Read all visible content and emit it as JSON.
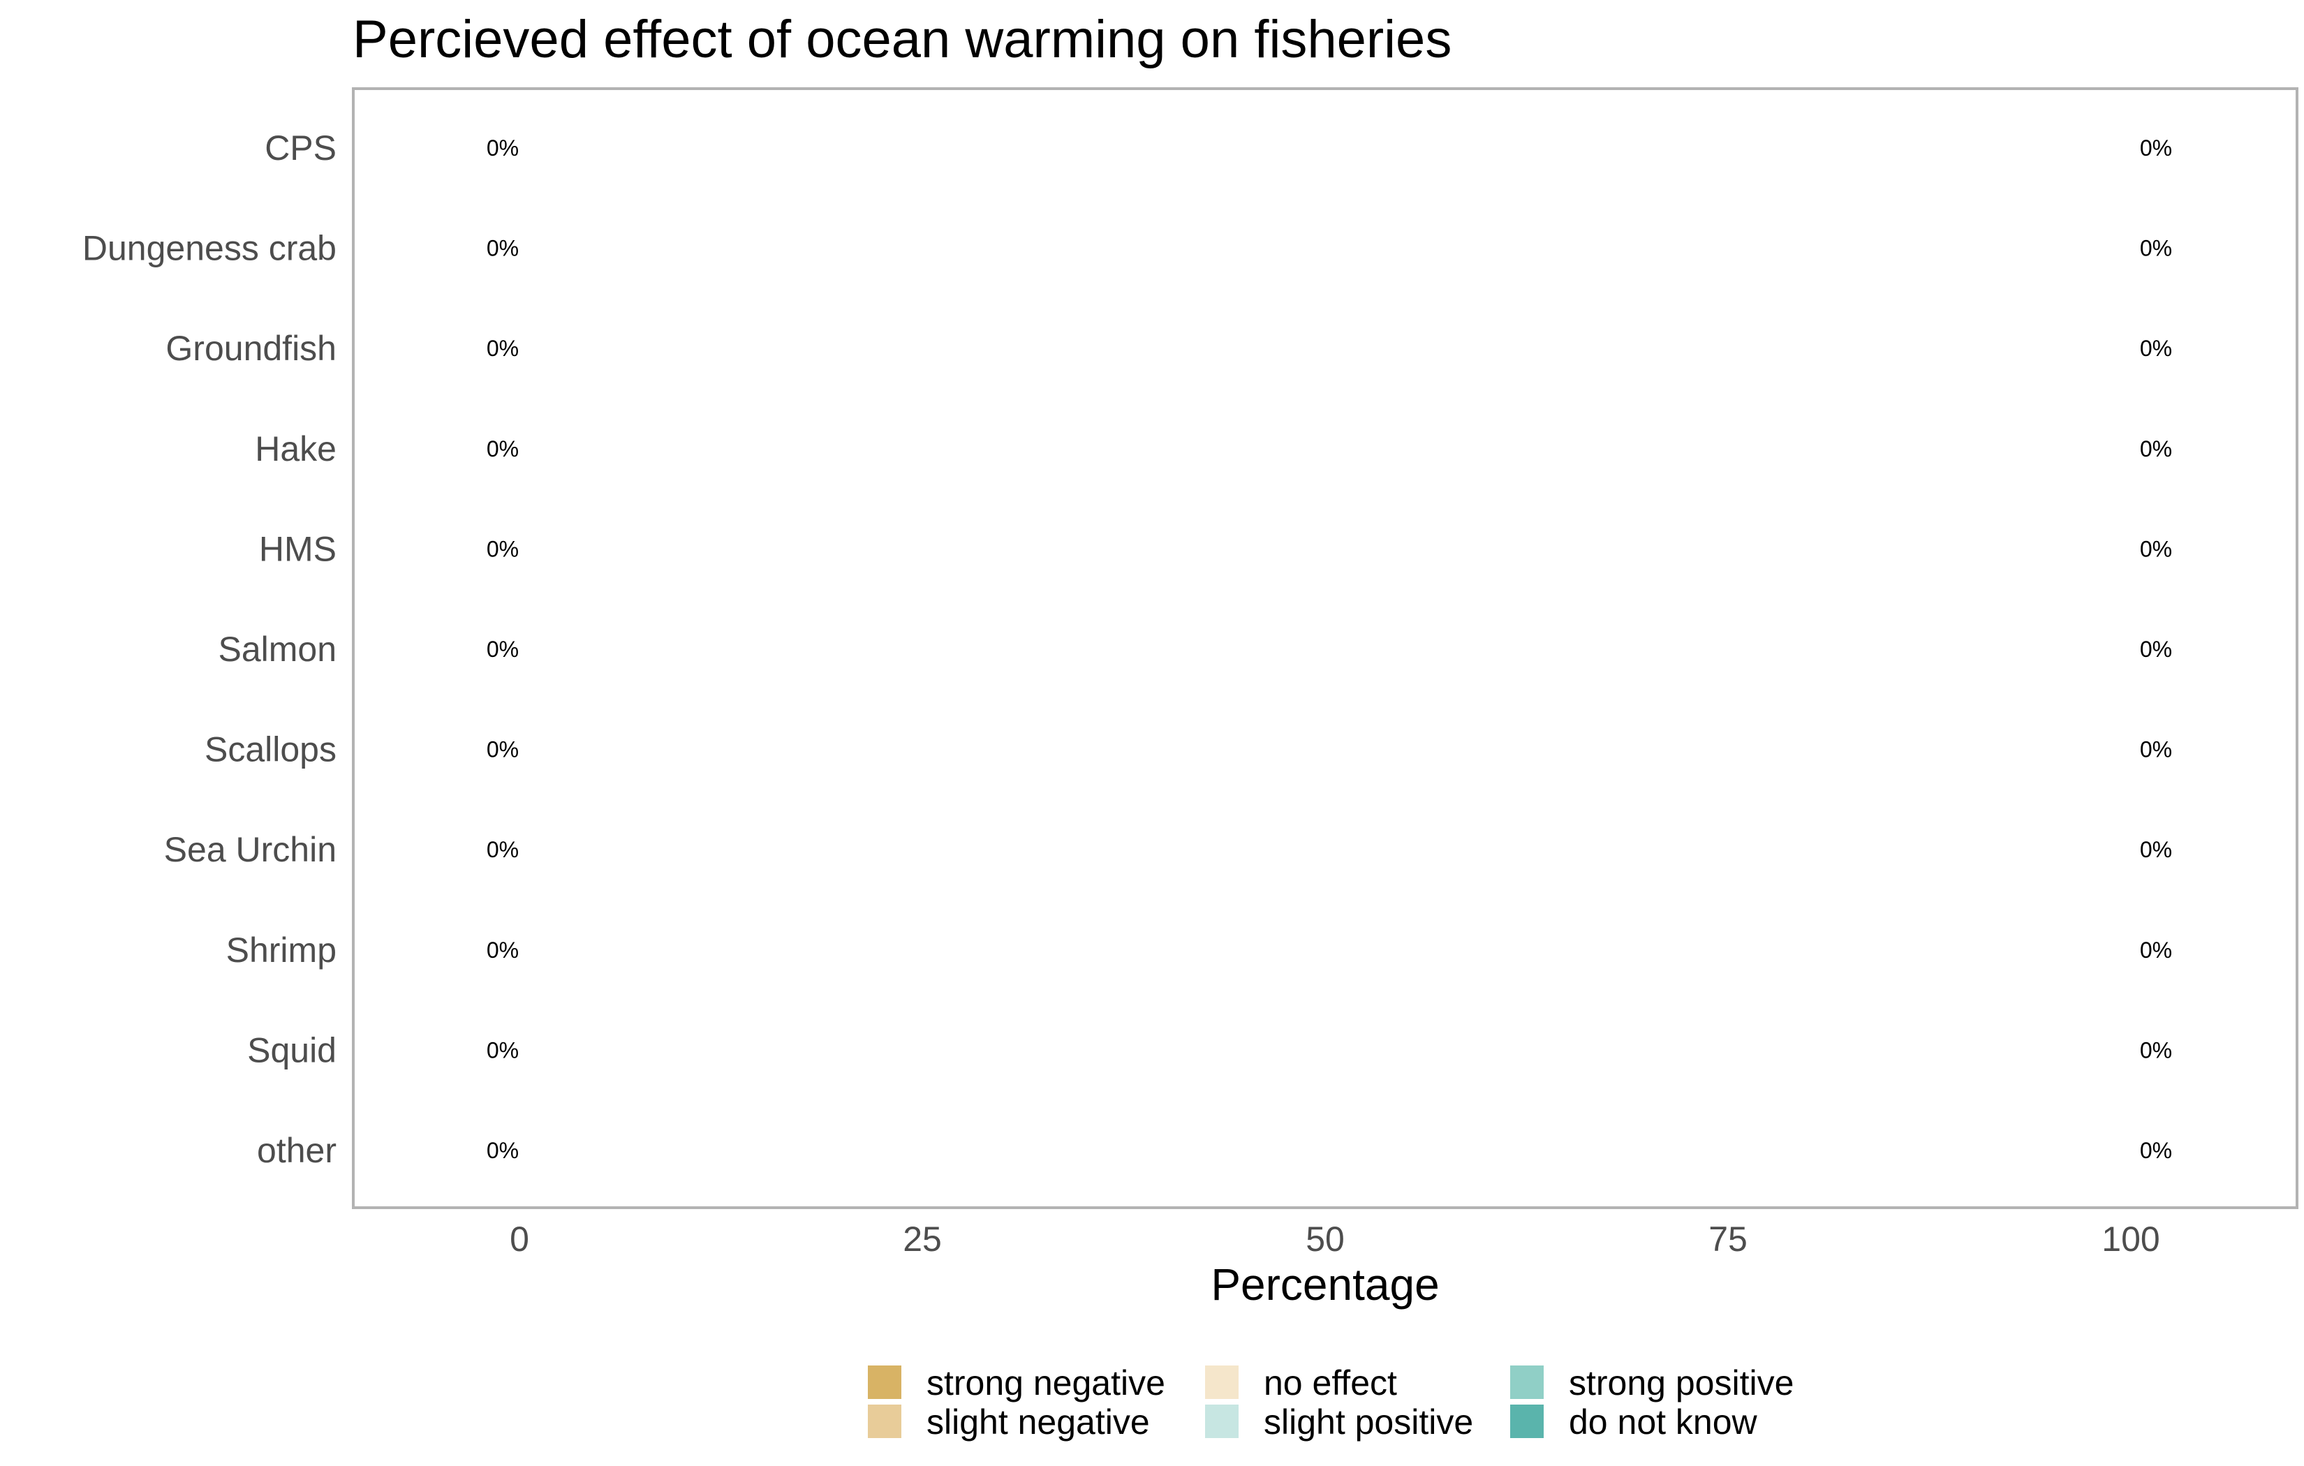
{
  "chart_data": {
    "type": "bar",
    "orientation": "horizontal",
    "stacked": true,
    "title": "Percieved effect of ocean warming on fisheries",
    "xlabel": "Percentage",
    "ylabel": "",
    "xlim": [
      -4,
      110
    ],
    "x_ticks": [
      0,
      25,
      50,
      75,
      100
    ],
    "categories": [
      "CPS",
      "Dungeness crab",
      "Groundfish",
      "Hake",
      "HMS",
      "Salmon",
      "Scallops",
      "Sea Urchin",
      "Shrimp",
      "Squid",
      "other"
    ],
    "series": [
      {
        "name": "strong negative",
        "color": "#d8b365",
        "values": [
          0,
          0,
          0,
          0,
          0,
          0,
          0,
          0,
          0,
          0,
          0
        ]
      },
      {
        "name": "slight negative",
        "color": "#e8cc99",
        "values": [
          0,
          0,
          0,
          0,
          0,
          0,
          0,
          0,
          0,
          0,
          0
        ]
      },
      {
        "name": "no effect",
        "color": "#f5e6cb",
        "values": [
          0,
          0,
          0,
          0,
          0,
          0,
          0,
          0,
          0,
          0,
          0
        ]
      },
      {
        "name": "slight positive",
        "color": "#c7e6e2",
        "values": [
          0,
          0,
          0,
          0,
          0,
          0,
          0,
          0,
          0,
          0,
          0
        ]
      },
      {
        "name": "strong positive",
        "color": "#90cfc6",
        "values": [
          0,
          0,
          0,
          0,
          0,
          0,
          0,
          0,
          0,
          0,
          0
        ]
      },
      {
        "name": "do not know",
        "color": "#5ab4ac",
        "values": [
          0,
          0,
          0,
          0,
          0,
          0,
          0,
          0,
          0,
          0,
          0
        ]
      }
    ],
    "data_labels": {
      "negative": [
        "0%",
        "0%",
        "0%",
        "0%",
        "0%",
        "0%",
        "0%",
        "0%",
        "0%",
        "0%",
        "0%"
      ],
      "positive": [
        "0%",
        "0%",
        "0%",
        "0%",
        "0%",
        "0%",
        "0%",
        "0%",
        "0%",
        "0%",
        "0%"
      ]
    },
    "legend_position": "bottom",
    "grid": false,
    "panel_border_color": "#b3b3b3"
  }
}
